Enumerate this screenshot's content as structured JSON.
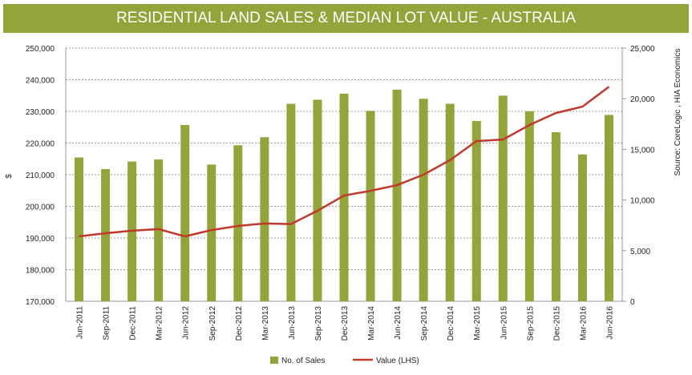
{
  "chart_data": {
    "type": "bar",
    "title": "RESIDENTIAL LAND SALES & MEDIAN LOT VALUE - AUSTRALIA",
    "ylabel": "$",
    "source": "Source: CoreLogic , HIA Economics",
    "categories": [
      "Jun-2011",
      "Sep-2011",
      "Dec-2011",
      "Mar-2012",
      "Jun-2012",
      "Sep-2012",
      "Dec-2012",
      "Mar-2013",
      "Jun-2013",
      "Sep-2013",
      "Dec-2013",
      "Mar-2014",
      "Jun-2014",
      "Sep-2014",
      "Dec-2014",
      "Mar-2015",
      "Jun-2015",
      "Sep-2015",
      "Dec-2015",
      "Mar-2016",
      "Jun-2016"
    ],
    "series": [
      {
        "name": "No. of Sales",
        "type": "bar",
        "axis": "right",
        "color": "#94a33a",
        "values": [
          14200,
          13050,
          13800,
          14000,
          17400,
          13500,
          15400,
          16200,
          19500,
          19900,
          20500,
          18800,
          20900,
          20000,
          19500,
          17800,
          20300,
          18750,
          16700,
          14500,
          18400
        ]
      },
      {
        "name": "Value (LHS)",
        "type": "line",
        "axis": "left",
        "color": "#c0392b",
        "values": [
          190500,
          191500,
          192300,
          192800,
          190500,
          192500,
          193800,
          194600,
          194400,
          198600,
          203400,
          204900,
          206700,
          210000,
          214600,
          220600,
          221100,
          225700,
          229500,
          231500,
          237800
        ]
      }
    ],
    "left_axis": {
      "ylim": [
        170000,
        250000
      ],
      "ticks": [
        "170,000",
        "180,000",
        "190,000",
        "200,000",
        "210,000",
        "220,000",
        "230,000",
        "240,000",
        "250,000"
      ]
    },
    "right_axis": {
      "ylim": [
        0,
        25000
      ],
      "ticks": [
        "0",
        "5,000",
        "10,000",
        "15,000",
        "20,000",
        "25,000"
      ]
    },
    "grid": true,
    "legend": "bottom"
  }
}
